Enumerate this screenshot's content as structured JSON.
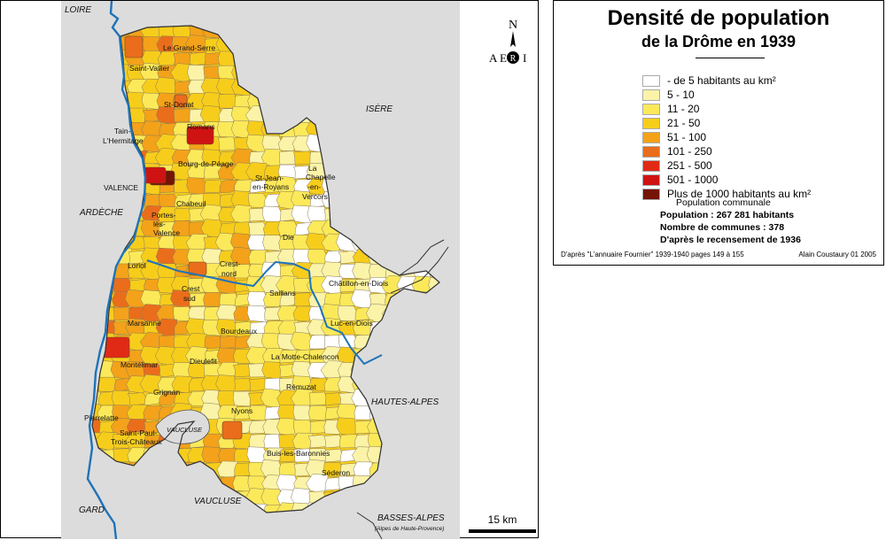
{
  "legend": {
    "title": "Densité de population",
    "subtitle": "de la Drôme en 1939",
    "items": [
      {
        "label": "- de 5 habitants au km²",
        "color": "#ffffff"
      },
      {
        "label": "5 - 10",
        "color": "#fbf3a8"
      },
      {
        "label": "11 - 20",
        "color": "#fbe95a"
      },
      {
        "label": "21 - 50",
        "color": "#f7cd1c"
      },
      {
        "label": "51 - 100",
        "color": "#f3a21a"
      },
      {
        "label": "101 - 250",
        "color": "#ea6d1c"
      },
      {
        "label": "251 - 500",
        "color": "#e02a16"
      },
      {
        "label": "501 - 1000",
        "color": "#cf1313"
      },
      {
        "label": "Plus de 1000 habitants au km²",
        "color": "#731407"
      }
    ],
    "population_communale": "Population communale",
    "population": "Population : 267 281 habitants",
    "communes": "Nombre de communes : 378",
    "recensement": "D'après le recensement de 1936",
    "source": "D'après \"L'annuaire Fournier\" 1939-1940 pages 149 à 155",
    "author": "Alain Coustaury 01 2005"
  },
  "map": {
    "north_label": "N",
    "logo_text": [
      "A",
      "E",
      "R",
      "I"
    ],
    "scale_label": "15 km",
    "regions": [
      {
        "name": "LOIRE"
      },
      {
        "name": "ISÈRE"
      },
      {
        "name": "ARDÈCHE"
      },
      {
        "name": "HAUTES-ALPES"
      },
      {
        "name": "GARD"
      },
      {
        "name": "VAUCLUSE"
      },
      {
        "name": "VAUCLUSE"
      },
      {
        "name": "BASSES-ALPES"
      },
      {
        "name": "(Alpes de Haute-Provence)"
      }
    ],
    "towns": [
      {
        "name": "Le Grand-Serre"
      },
      {
        "name": "Saint-Vallier"
      },
      {
        "name": "St-Donat"
      },
      {
        "name": "Tain-"
      },
      {
        "name": "L'Hermitage"
      },
      {
        "name": "Romans"
      },
      {
        "name": "Bourg-de-Péage"
      },
      {
        "name": "VALENCE"
      },
      {
        "name": "Chabeuil"
      },
      {
        "name": "St-Jean-"
      },
      {
        "name": "en-Royans"
      },
      {
        "name": "La"
      },
      {
        "name": "Chapelle"
      },
      {
        "name": "-en-"
      },
      {
        "name": "Vercors"
      },
      {
        "name": "Portes-"
      },
      {
        "name": "lès-"
      },
      {
        "name": "Valence"
      },
      {
        "name": "Die"
      },
      {
        "name": "Loriol"
      },
      {
        "name": "Crest-"
      },
      {
        "name": "nord"
      },
      {
        "name": "Crest"
      },
      {
        "name": "sud"
      },
      {
        "name": "Saillans"
      },
      {
        "name": "Châtillon-en-Diois"
      },
      {
        "name": "Marsanne"
      },
      {
        "name": "Luc-en-Diois"
      },
      {
        "name": "Bourdeaux"
      },
      {
        "name": "Montélimar"
      },
      {
        "name": "Dieulefit"
      },
      {
        "name": "La Motte-Chalencon"
      },
      {
        "name": "Grignan"
      },
      {
        "name": "Rémuzat"
      },
      {
        "name": "Pierrelatte"
      },
      {
        "name": "Nyons"
      },
      {
        "name": "Saint-Paul-"
      },
      {
        "name": "Trois-Châteaux"
      },
      {
        "name": "Buis-les-Baronnies"
      },
      {
        "name": "Séderon"
      }
    ]
  }
}
